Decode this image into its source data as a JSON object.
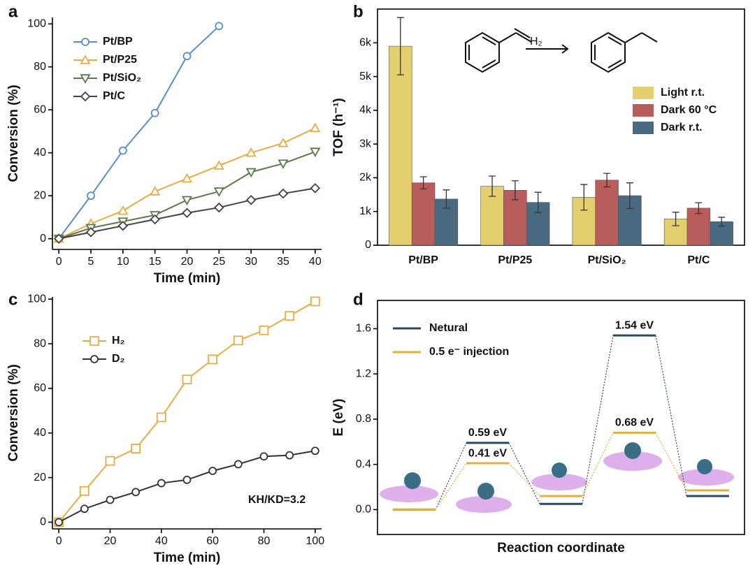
{
  "chart_data": [
    {
      "type": "line",
      "label": "a",
      "xlabel": "Time (min)",
      "ylabel": "Conversion (%)",
      "x": [
        0,
        5,
        10,
        15,
        20,
        25,
        30,
        35,
        40
      ],
      "xlim": [
        -1,
        41
      ],
      "xticks": [
        0,
        5,
        10,
        15,
        20,
        25,
        30,
        35,
        40
      ],
      "ylim": [
        -5,
        103
      ],
      "yticks": [
        0,
        20,
        40,
        60,
        80,
        100
      ],
      "series": [
        {
          "name": "Pt/BP",
          "color": "#5b8ec4",
          "marker": "circle",
          "values": [
            0,
            20,
            41,
            58.5,
            85,
            99,
            null,
            null,
            null
          ]
        },
        {
          "name": "Pt/P25",
          "color": "#e6ad45",
          "marker": "triangle",
          "values": [
            0,
            7,
            13,
            22,
            28,
            34,
            40,
            44.5,
            51.5
          ]
        },
        {
          "name": "Pt/SiO₂",
          "color": "#5a7a4a",
          "marker": "triangle-down",
          "values": [
            0,
            5,
            8,
            11,
            18,
            22,
            31,
            35,
            40.5
          ]
        },
        {
          "name": "Pt/C",
          "color": "#4a4040",
          "marker": "diamond",
          "values": [
            0,
            3,
            6,
            9,
            12,
            14.5,
            18,
            21,
            23.5
          ]
        }
      ]
    },
    {
      "type": "bar",
      "label": "b",
      "ylabel": "TOF (h⁻¹)",
      "annotation": "H₂",
      "categories": [
        "Pt/BP",
        "Pt/P25",
        "Pt/SiO₂",
        "Pt/C"
      ],
      "ylim": [
        0,
        7000
      ],
      "yticks": [
        0,
        {
          "value": 1000,
          "label": "1k"
        },
        {
          "value": 2000,
          "label": "2k"
        },
        {
          "value": 3000,
          "label": "3k"
        },
        {
          "value": 4000,
          "label": "4k"
        },
        {
          "value": 5000,
          "label": "5k"
        },
        {
          "value": 6000,
          "label": "6k"
        }
      ],
      "series": [
        {
          "name": "Light r.t.",
          "color": "#e3cf6e",
          "values": [
            5900,
            1750,
            1420,
            780
          ],
          "errors": [
            850,
            300,
            380,
            200
          ]
        },
        {
          "name": "Dark 60 °C",
          "color": "#b85c5c",
          "values": [
            1850,
            1630,
            1930,
            1100
          ],
          "errors": [
            180,
            280,
            200,
            160
          ]
        },
        {
          "name": "Dark r.t.",
          "color": "#4a6a82",
          "values": [
            1370,
            1270,
            1470,
            700
          ],
          "errors": [
            270,
            300,
            380,
            130
          ]
        }
      ]
    },
    {
      "type": "line",
      "label": "c",
      "xlabel": "Time (min)",
      "ylabel": "Conversion (%)",
      "annotation": "KH/KD=3.2",
      "x": [
        0,
        10,
        20,
        30,
        40,
        50,
        60,
        70,
        80,
        90,
        100
      ],
      "xlim": [
        -2.5,
        102.5
      ],
      "xticks": [
        0,
        20,
        40,
        60,
        80,
        100
      ],
      "ylim": [
        -3,
        101
      ],
      "yticks": [
        0,
        20,
        40,
        60,
        80,
        100
      ],
      "series": [
        {
          "name": "H₂",
          "color": "#e6ad45",
          "marker": "square",
          "values": [
            0,
            14,
            27.5,
            33,
            47,
            64,
            73,
            81.5,
            86,
            92.5,
            99
          ]
        },
        {
          "name": "D₂",
          "color": "#333333",
          "marker": "circle",
          "values": [
            0,
            6,
            10,
            13.5,
            17.5,
            19,
            23,
            26,
            29.5,
            30,
            32
          ]
        }
      ]
    },
    {
      "type": "energy",
      "label": "d",
      "xlabel": "Reaction coordinate",
      "ylabel": "E (eV)",
      "categories": [
        null,
        null,
        null,
        null,
        null
      ],
      "ylim": [
        -0.22,
        1.85
      ],
      "yticks": [
        {
          "value": 0,
          "label": "0.0"
        },
        0.4,
        0.8,
        1.2,
        1.6
      ],
      "series": [
        {
          "name": "Netural",
          "color": "#2c4a5e",
          "values": [
            0,
            0.59,
            0.05,
            1.54,
            0.12
          ],
          "value_labels": [
            null,
            "0.59 eV",
            null,
            "1.54 eV",
            null
          ]
        },
        {
          "name": "0.5 e⁻ injection",
          "color": "#e0b040",
          "values": [
            0,
            0.41,
            0.12,
            0.68,
            0.17
          ],
          "value_labels": [
            null,
            "0.41 eV",
            null,
            "0.68 eV",
            null
          ]
        }
      ]
    }
  ]
}
